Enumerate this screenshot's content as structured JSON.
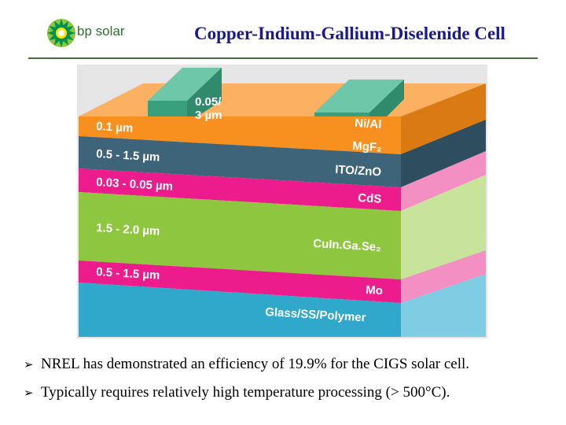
{
  "header": {
    "logo_text": "bp solar",
    "title": "Copper-Indium-Gallium-Diselenide Cell"
  },
  "diagram": {
    "contacts": {
      "size_label_1": "0.05/",
      "size_label_2": "3 µm"
    },
    "layers": [
      {
        "thickness": "0.1 µm",
        "material": "Ni/Al",
        "color": "#f7901e"
      },
      {
        "thickness": "",
        "material": "MgF₂",
        "color": "#f7901e"
      },
      {
        "thickness": "0.5 - 1.5 µm",
        "material": "ITO/ZnO",
        "color": "#3d6478"
      },
      {
        "thickness": "0.03 - 0.05 µm",
        "material": "CdS",
        "color": "#ec1c8c"
      },
      {
        "thickness": "1.5 - 2.0 µm",
        "material": "CuIn.Ga.Se₂",
        "color": "#8ec63f"
      },
      {
        "thickness": "0.5 - 1.5 µm",
        "material": "Mo",
        "color": "#ec1c8c"
      },
      {
        "thickness": "",
        "material": "Glass/SS/Polymer",
        "color": "#2fa8cc"
      }
    ]
  },
  "bullets": [
    "NREL has demonstrated an efficiency of 19.9% for the CIGS solar cell.",
    "Typically requires relatively high temperature processing (> 500°C)."
  ]
}
